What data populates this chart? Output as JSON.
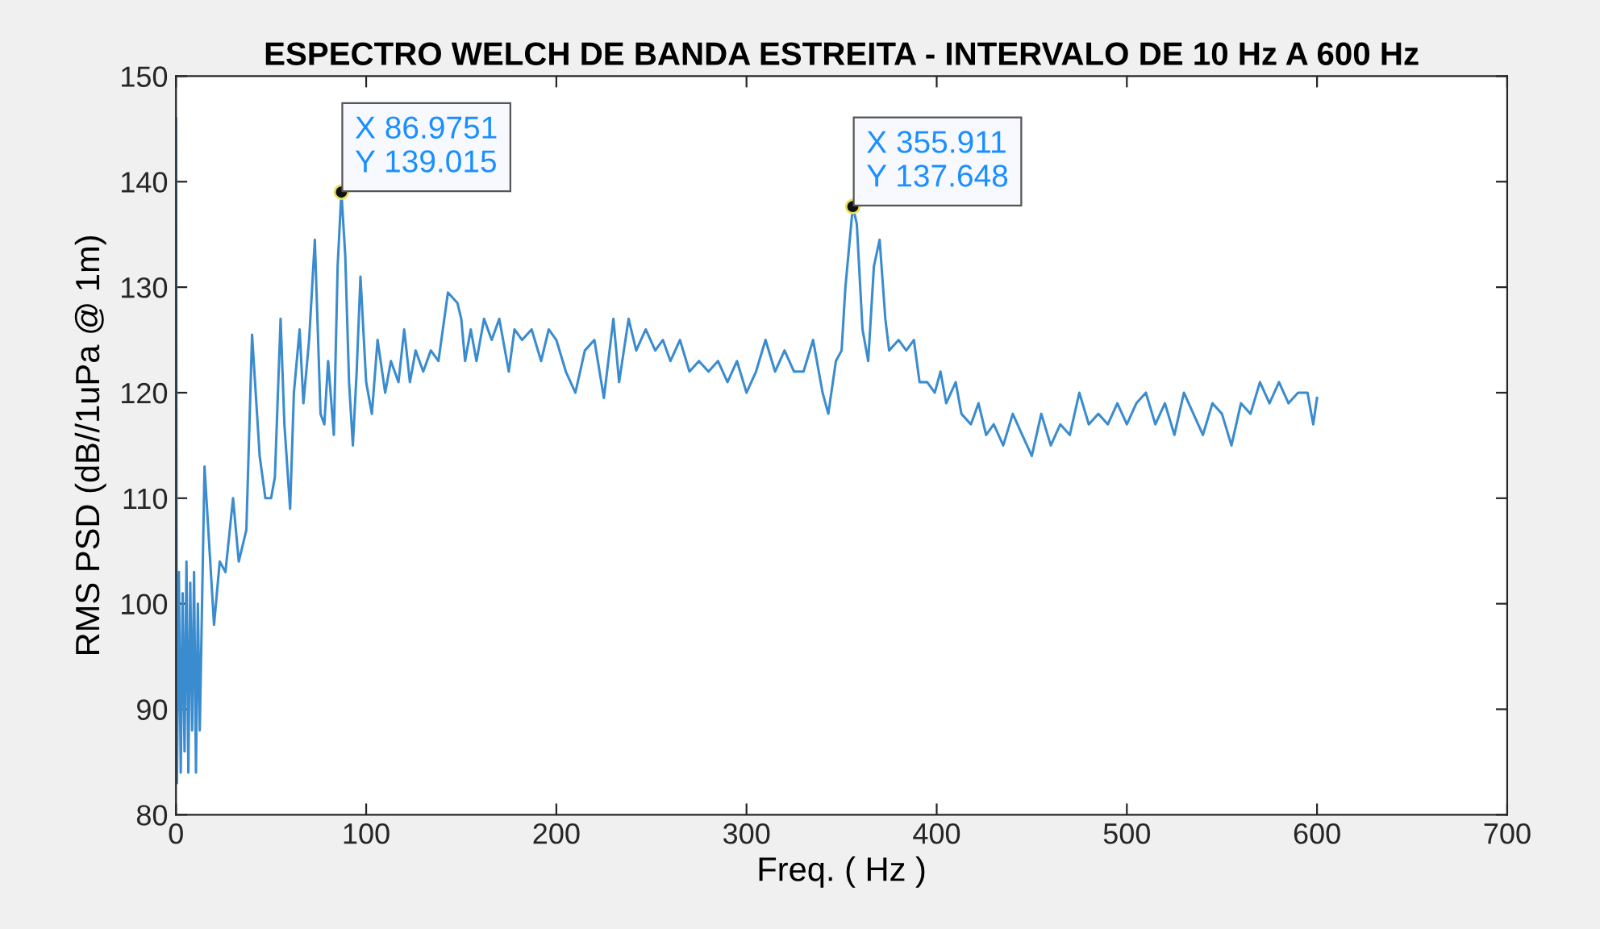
{
  "chart_data": {
    "type": "line",
    "title": "ESPECTRO WELCH DE BANDA ESTREITA - INTERVALO DE 10 Hz A 600 Hz",
    "xlabel": "Freq. ( Hz )",
    "ylabel": "RMS PSD (dB//1uPa @ 1m)",
    "xlim": [
      0,
      700
    ],
    "ylim": [
      80,
      150
    ],
    "xticks": [
      0,
      100,
      200,
      300,
      400,
      500,
      600,
      700
    ],
    "yticks": [
      80,
      90,
      100,
      110,
      120,
      130,
      140,
      150
    ],
    "marker": "none",
    "line_style": "solid",
    "annotations": [
      {
        "text": "X 86.9751\nY 139.015",
        "x": 86.9751,
        "y": 139.015
      },
      {
        "text": "X 355.911\nY 137.648",
        "x": 355.911,
        "y": 137.648
      }
    ],
    "series": [
      {
        "color": "#3a8ccf",
        "x": [
          0,
          0.5,
          1.5,
          2.5,
          3.5,
          4.5,
          5.5,
          6.5,
          7.5,
          8.5,
          9.5,
          10.5,
          11.5,
          12.5,
          15,
          17,
          20,
          23,
          26,
          30,
          33,
          37,
          40,
          44,
          47,
          50,
          52,
          55,
          57,
          60,
          62,
          65,
          67,
          70,
          73,
          76,
          78,
          80,
          83,
          85,
          86.9751,
          89,
          91,
          93,
          95,
          97,
          100,
          103,
          106,
          110,
          113,
          117,
          120,
          123,
          126,
          130,
          134,
          138,
          143,
          148,
          150,
          152,
          155,
          158,
          162,
          166,
          170,
          175,
          178,
          182,
          187,
          192,
          196,
          200,
          205,
          210,
          215,
          220,
          225,
          230,
          233,
          238,
          242,
          247,
          252,
          256,
          260,
          265,
          270,
          275,
          280,
          285,
          290,
          295,
          300,
          305,
          310,
          315,
          320,
          325,
          330,
          335,
          340,
          343,
          347,
          350,
          352,
          355.911,
          358,
          361,
          364,
          367,
          370,
          373,
          375,
          380,
          384,
          388,
          391,
          395,
          399,
          402,
          405,
          410,
          413,
          418,
          422,
          426,
          430,
          435,
          440,
          445,
          450,
          455,
          460,
          465,
          470,
          475,
          480,
          485,
          490,
          495,
          500,
          505,
          510,
          515,
          520,
          525,
          530,
          535,
          540,
          545,
          550,
          555,
          560,
          565,
          570,
          575,
          580,
          585,
          590,
          595,
          598,
          600
        ],
        "values": [
          146,
          83,
          103,
          84,
          101,
          86,
          104,
          84,
          102,
          88,
          103,
          84,
          100,
          88,
          113,
          107,
          98,
          104,
          103,
          110,
          104,
          107,
          125.5,
          114,
          110,
          110,
          112,
          127,
          117,
          109,
          120,
          126,
          119,
          125,
          134.5,
          118,
          117,
          123,
          116,
          132,
          139.015,
          133,
          121,
          115,
          122,
          131,
          121,
          118,
          125,
          120,
          123,
          121,
          126,
          121,
          124,
          122,
          124,
          123,
          129.5,
          128.5,
          127,
          123,
          126,
          123,
          127,
          125,
          127,
          122,
          126,
          125,
          126,
          123,
          126,
          125,
          122,
          120,
          124,
          125,
          119.5,
          127,
          121,
          127,
          124,
          126,
          124,
          125,
          123,
          125,
          122,
          123,
          122,
          123,
          121,
          123,
          120,
          122,
          125,
          122,
          124,
          122,
          122,
          125,
          120,
          118,
          123,
          124,
          130,
          137.648,
          136,
          126,
          123,
          132,
          134.5,
          127,
          124,
          125,
          124,
          125,
          121,
          121,
          120,
          122,
          119,
          121,
          118,
          117,
          119,
          116,
          117,
          115,
          118,
          116,
          114,
          118,
          115,
          117,
          116,
          120,
          117,
          118,
          117,
          119,
          117,
          119,
          120,
          117,
          119,
          116,
          120,
          118,
          116,
          119,
          118,
          115,
          119,
          118,
          121,
          119,
          121,
          119,
          120,
          120,
          117,
          119.5
        ]
      }
    ]
  }
}
